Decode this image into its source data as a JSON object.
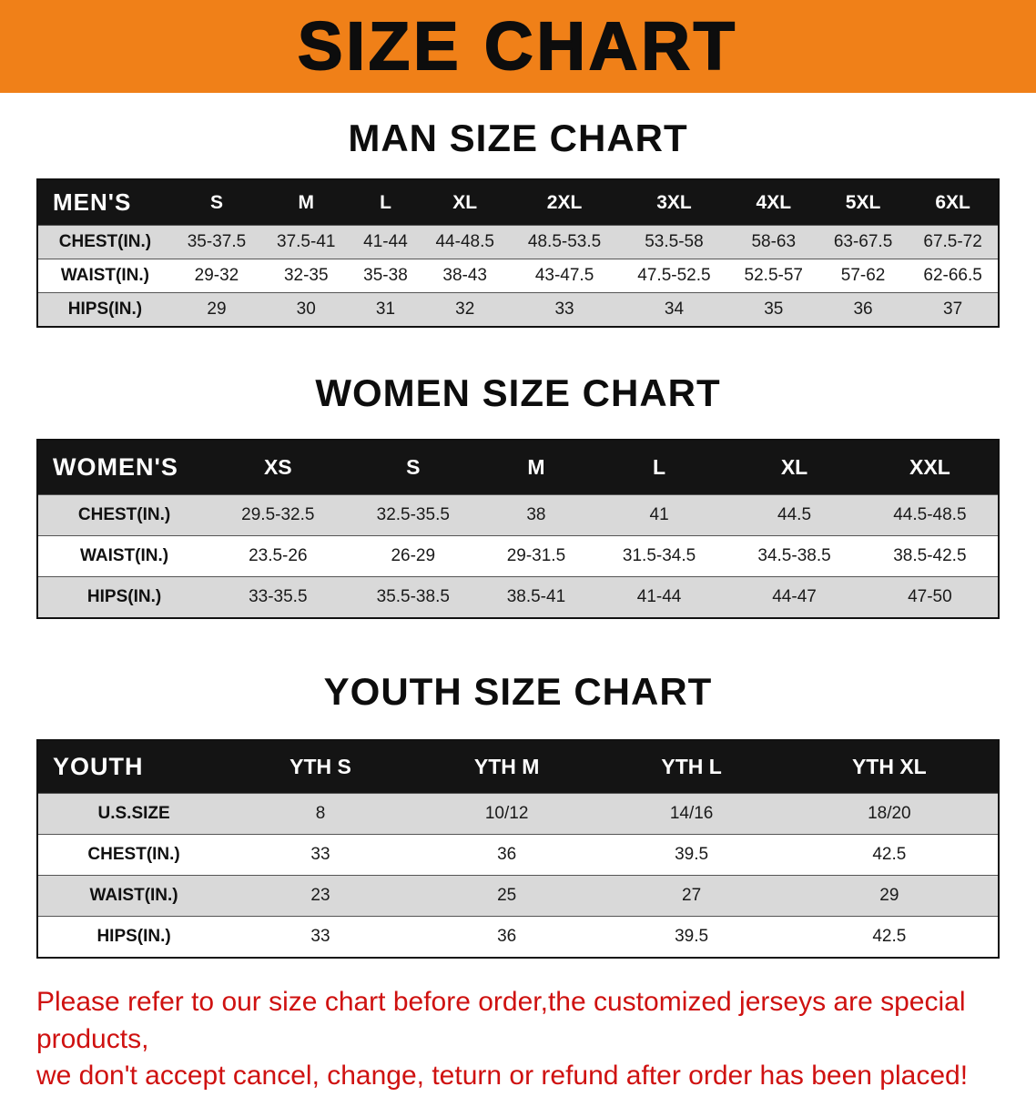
{
  "banner": {
    "title": "SIZE CHART"
  },
  "sections": {
    "men": {
      "heading": "MAN SIZE CHART"
    },
    "women": {
      "heading": "WOMEN SIZE CHART"
    },
    "youth": {
      "heading": "YOUTH SIZE CHART"
    }
  },
  "tables": {
    "men": {
      "header": [
        "MEN'S",
        "S",
        "M",
        "L",
        "XL",
        "2XL",
        "3XL",
        "4XL",
        "5XL",
        "6XL"
      ],
      "rows": [
        [
          "CHEST(IN.)",
          "35-37.5",
          "37.5-41",
          "41-44",
          "44-48.5",
          "48.5-53.5",
          "53.5-58",
          "58-63",
          "63-67.5",
          "67.5-72"
        ],
        [
          "WAIST(IN.)",
          "29-32",
          "32-35",
          "35-38",
          "38-43",
          "43-47.5",
          "47.5-52.5",
          "52.5-57",
          "57-62",
          "62-66.5"
        ],
        [
          "HIPS(IN.)",
          "29",
          "30",
          "31",
          "32",
          "33",
          "34",
          "35",
          "36",
          "37"
        ]
      ]
    },
    "women": {
      "header": [
        "WOMEN'S",
        "XS",
        "S",
        "M",
        "L",
        "XL",
        "XXL"
      ],
      "rows": [
        [
          "CHEST(IN.)",
          "29.5-32.5",
          "32.5-35.5",
          "38",
          "41",
          "44.5",
          "44.5-48.5"
        ],
        [
          "WAIST(IN.)",
          "23.5-26",
          "26-29",
          "29-31.5",
          "31.5-34.5",
          "34.5-38.5",
          "38.5-42.5"
        ],
        [
          "HIPS(IN.)",
          "33-35.5",
          "35.5-38.5",
          "38.5-41",
          "41-44",
          "44-47",
          "47-50"
        ]
      ]
    },
    "youth": {
      "header": [
        "YOUTH",
        "YTH S",
        "YTH M",
        "YTH L",
        "YTH XL"
      ],
      "rows": [
        [
          "U.S.SIZE",
          "8",
          "10/12",
          "14/16",
          "18/20"
        ],
        [
          "CHEST(IN.)",
          "33",
          "36",
          "39.5",
          "42.5"
        ],
        [
          "WAIST(IN.)",
          "23",
          "25",
          "27",
          "29"
        ],
        [
          "HIPS(IN.)",
          "33",
          "36",
          "39.5",
          "42.5"
        ]
      ]
    }
  },
  "footer": {
    "line1": "Please refer to our size chart before order,the customized jerseys are special products,",
    "line2": "we don't accept cancel, change, teturn or refund after order has been placed!"
  },
  "colors": {
    "banner_bg": "#f08018",
    "table_header_bg": "#141414",
    "row_alt_bg": "#d9d9d9",
    "footer_text": "#cf1110"
  }
}
